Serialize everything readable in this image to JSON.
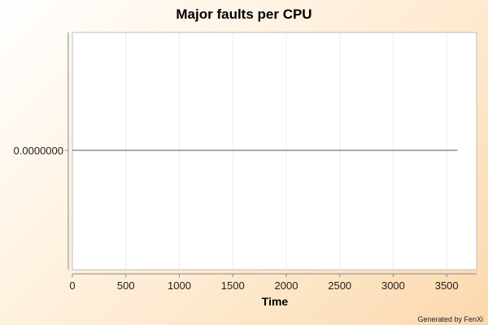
{
  "chart_data": {
    "type": "line",
    "title": "Major faults per CPU",
    "xlabel": "Time",
    "ylabel": "",
    "x_ticks": [
      0,
      500,
      1000,
      1500,
      2000,
      2500,
      3000,
      3500
    ],
    "y_ticks": [
      "0.0000000"
    ],
    "xlim": [
      0,
      3780
    ],
    "series": [
      {
        "x": [
          0,
          3600
        ],
        "y": [
          0,
          0
        ],
        "color": "#555555"
      }
    ],
    "grid": true,
    "legend": "none"
  },
  "footer": {
    "credit": "Generated by FenXi"
  },
  "colors": {
    "plot_background": "#ffffff",
    "grid": "#ececec",
    "axis": "#888888",
    "series": "#555555"
  }
}
